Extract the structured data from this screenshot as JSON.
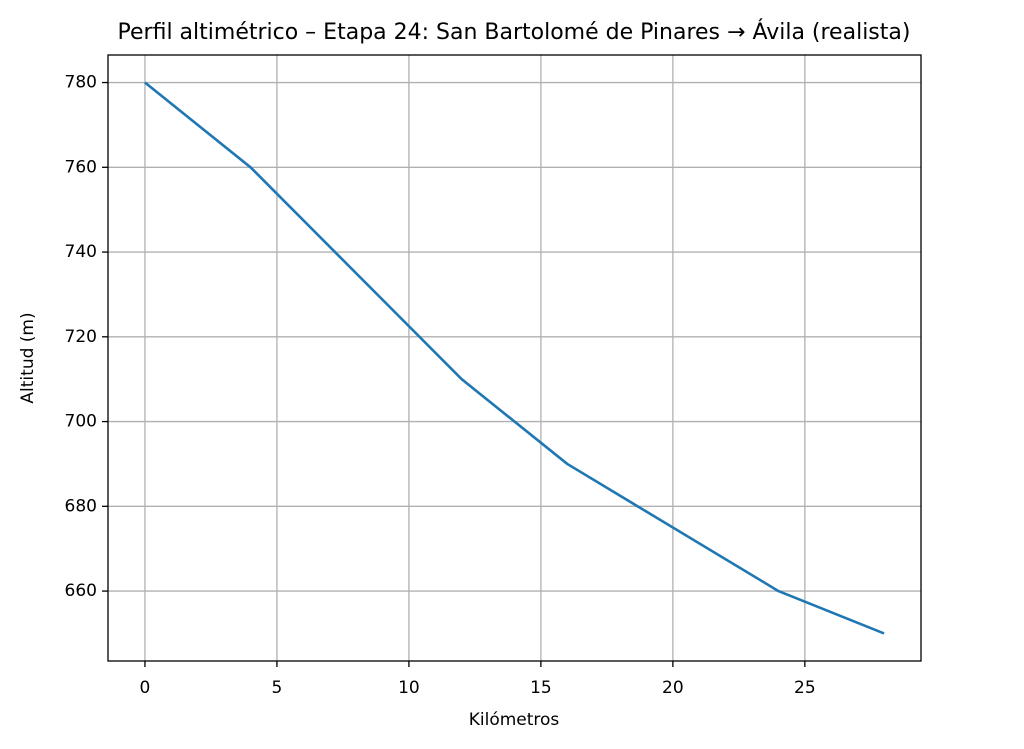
{
  "chart_data": {
    "type": "line",
    "title": "Perfil altimétrico – Etapa 24: San Bartolomé de Pinares → Ávila (realista)",
    "x_label": "Kilómetros",
    "y_label": "Altitud (m)",
    "x": [
      0,
      4,
      12,
      16,
      24,
      28
    ],
    "series": [
      {
        "name": "Altitud",
        "color": "#1f77b4",
        "values": [
          780,
          760,
          710,
          690,
          660,
          650
        ]
      }
    ],
    "xlim": [
      -1.4,
      29.4
    ],
    "xticks": [
      0,
      5,
      10,
      15,
      20,
      25
    ],
    "ylim": [
      643.5,
      786.5
    ],
    "yticks": [
      660,
      680,
      700,
      720,
      740,
      760,
      780
    ],
    "grid": true
  }
}
